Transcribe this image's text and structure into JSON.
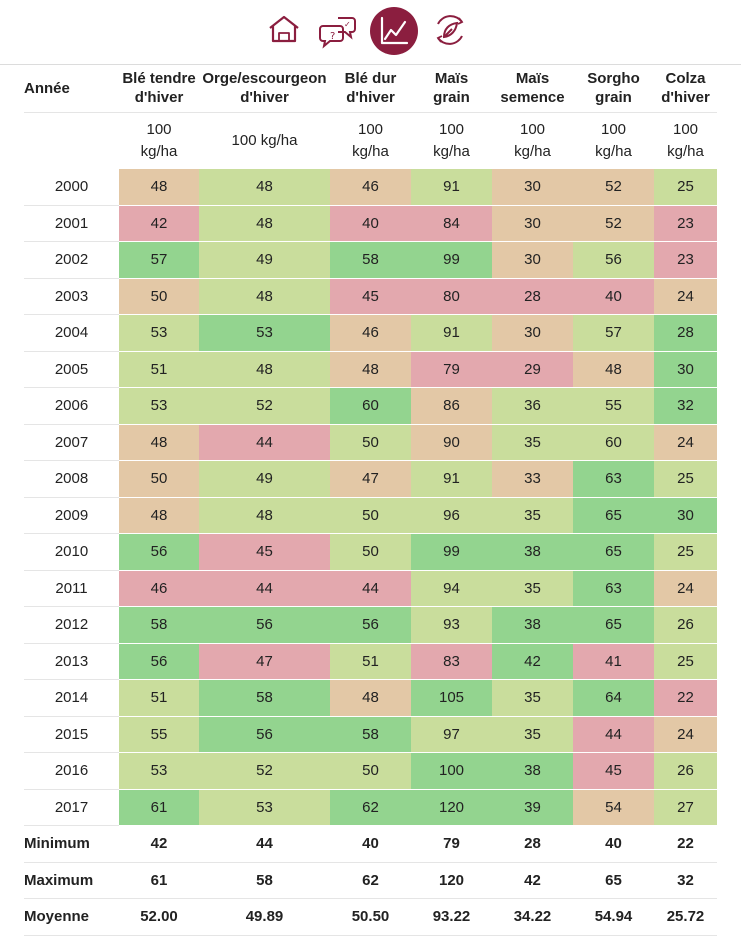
{
  "nav": {
    "items": [
      {
        "name": "home-icon",
        "active": false
      },
      {
        "name": "help-chat-icon",
        "active": false
      },
      {
        "name": "chart-icon",
        "active": true
      },
      {
        "name": "crop-cycle-icon",
        "active": false
      }
    ]
  },
  "colors": {
    "brand": "#8b1e3f",
    "low": "#e3a8ae",
    "below": "#e3c8a6",
    "above": "#c9dd9c",
    "high": "#93d48f"
  },
  "chart_data": {
    "type": "table",
    "year_header": "Année",
    "columns": [
      {
        "name": "Blé tendre d'hiver",
        "name_lines": [
          "Blé tendre",
          "d'hiver"
        ],
        "unit_lines": [
          "100",
          "kg/ha"
        ]
      },
      {
        "name": "Orge/escourgeon d'hiver",
        "name_lines": [
          "Orge/escourgeon",
          "d'hiver"
        ],
        "unit_lines": [
          "100 kg/ha"
        ]
      },
      {
        "name": "Blé dur d'hiver",
        "name_lines": [
          "Blé dur",
          "d'hiver"
        ],
        "unit_lines": [
          "100",
          "kg/ha"
        ]
      },
      {
        "name": "Maïs grain",
        "name_lines": [
          "Maïs",
          "grain"
        ],
        "unit_lines": [
          "100",
          "kg/ha"
        ]
      },
      {
        "name": "Maïs semence",
        "name_lines": [
          "Maïs",
          "semence"
        ],
        "unit_lines": [
          "100",
          "kg/ha"
        ]
      },
      {
        "name": "Sorgho grain",
        "name_lines": [
          "Sorgho",
          "grain"
        ],
        "unit_lines": [
          "100",
          "kg/ha"
        ]
      },
      {
        "name": "Colza d'hiver",
        "name_lines": [
          "Colza",
          "d'hiver"
        ],
        "unit_lines": [
          "100",
          "kg/ha"
        ]
      }
    ],
    "rows": [
      {
        "year": "2000",
        "values": [
          48,
          48,
          46,
          91,
          30,
          52,
          25
        ],
        "levels": [
          "below",
          "above",
          "below",
          "above",
          "below",
          "below",
          "above"
        ]
      },
      {
        "year": "2001",
        "values": [
          42,
          48,
          40,
          84,
          30,
          52,
          23
        ],
        "levels": [
          "low",
          "above",
          "low",
          "low",
          "below",
          "below",
          "low"
        ]
      },
      {
        "year": "2002",
        "values": [
          57,
          49,
          58,
          99,
          30,
          56,
          23
        ],
        "levels": [
          "high",
          "above",
          "high",
          "high",
          "below",
          "above",
          "low"
        ]
      },
      {
        "year": "2003",
        "values": [
          50,
          48,
          45,
          80,
          28,
          40,
          24
        ],
        "levels": [
          "below",
          "above",
          "low",
          "low",
          "low",
          "low",
          "below"
        ]
      },
      {
        "year": "2004",
        "values": [
          53,
          53,
          46,
          91,
          30,
          57,
          28
        ],
        "levels": [
          "above",
          "high",
          "below",
          "above",
          "below",
          "above",
          "high"
        ]
      },
      {
        "year": "2005",
        "values": [
          51,
          48,
          48,
          79,
          29,
          48,
          30
        ],
        "levels": [
          "above",
          "above",
          "below",
          "low",
          "low",
          "below",
          "high"
        ]
      },
      {
        "year": "2006",
        "values": [
          53,
          52,
          60,
          86,
          36,
          55,
          32
        ],
        "levels": [
          "above",
          "above",
          "high",
          "below",
          "above",
          "above",
          "high"
        ]
      },
      {
        "year": "2007",
        "values": [
          48,
          44,
          50,
          90,
          35,
          60,
          24
        ],
        "levels": [
          "below",
          "low",
          "above",
          "below",
          "above",
          "above",
          "below"
        ]
      },
      {
        "year": "2008",
        "values": [
          50,
          49,
          47,
          91,
          33,
          63,
          25
        ],
        "levels": [
          "below",
          "above",
          "below",
          "above",
          "below",
          "high",
          "above"
        ]
      },
      {
        "year": "2009",
        "values": [
          48,
          48,
          50,
          96,
          35,
          65,
          30
        ],
        "levels": [
          "below",
          "above",
          "above",
          "above",
          "above",
          "high",
          "high"
        ]
      },
      {
        "year": "2010",
        "values": [
          56,
          45,
          50,
          99,
          38,
          65,
          25
        ],
        "levels": [
          "high",
          "low",
          "above",
          "high",
          "high",
          "high",
          "above"
        ]
      },
      {
        "year": "2011",
        "values": [
          46,
          44,
          44,
          94,
          35,
          63,
          24
        ],
        "levels": [
          "low",
          "low",
          "low",
          "above",
          "above",
          "high",
          "below"
        ]
      },
      {
        "year": "2012",
        "values": [
          58,
          56,
          56,
          93,
          38,
          65,
          26
        ],
        "levels": [
          "high",
          "high",
          "high",
          "above",
          "high",
          "high",
          "above"
        ]
      },
      {
        "year": "2013",
        "values": [
          56,
          47,
          51,
          83,
          42,
          41,
          25
        ],
        "levels": [
          "high",
          "low",
          "above",
          "low",
          "high",
          "low",
          "above"
        ]
      },
      {
        "year": "2014",
        "values": [
          51,
          58,
          48,
          105,
          35,
          64,
          22
        ],
        "levels": [
          "above",
          "high",
          "below",
          "high",
          "above",
          "high",
          "low"
        ]
      },
      {
        "year": "2015",
        "values": [
          55,
          56,
          58,
          97,
          35,
          44,
          24
        ],
        "levels": [
          "above",
          "high",
          "high",
          "above",
          "above",
          "low",
          "below"
        ]
      },
      {
        "year": "2016",
        "values": [
          53,
          52,
          50,
          100,
          38,
          45,
          26
        ],
        "levels": [
          "above",
          "above",
          "above",
          "high",
          "high",
          "low",
          "above"
        ]
      },
      {
        "year": "2017",
        "values": [
          61,
          53,
          62,
          120,
          39,
          54,
          27
        ],
        "levels": [
          "high",
          "above",
          "high",
          "high",
          "high",
          "below",
          "above"
        ]
      }
    ],
    "summary": [
      {
        "label": "Minimum",
        "values": [
          "42",
          "44",
          "40",
          "79",
          "28",
          "40",
          "22"
        ]
      },
      {
        "label": "Maximum",
        "values": [
          "61",
          "58",
          "62",
          "120",
          "42",
          "65",
          "32"
        ]
      },
      {
        "label": "Moyenne",
        "values": [
          "52.00",
          "49.89",
          "50.50",
          "93.22",
          "34.22",
          "54.94",
          "25.72"
        ]
      }
    ]
  }
}
